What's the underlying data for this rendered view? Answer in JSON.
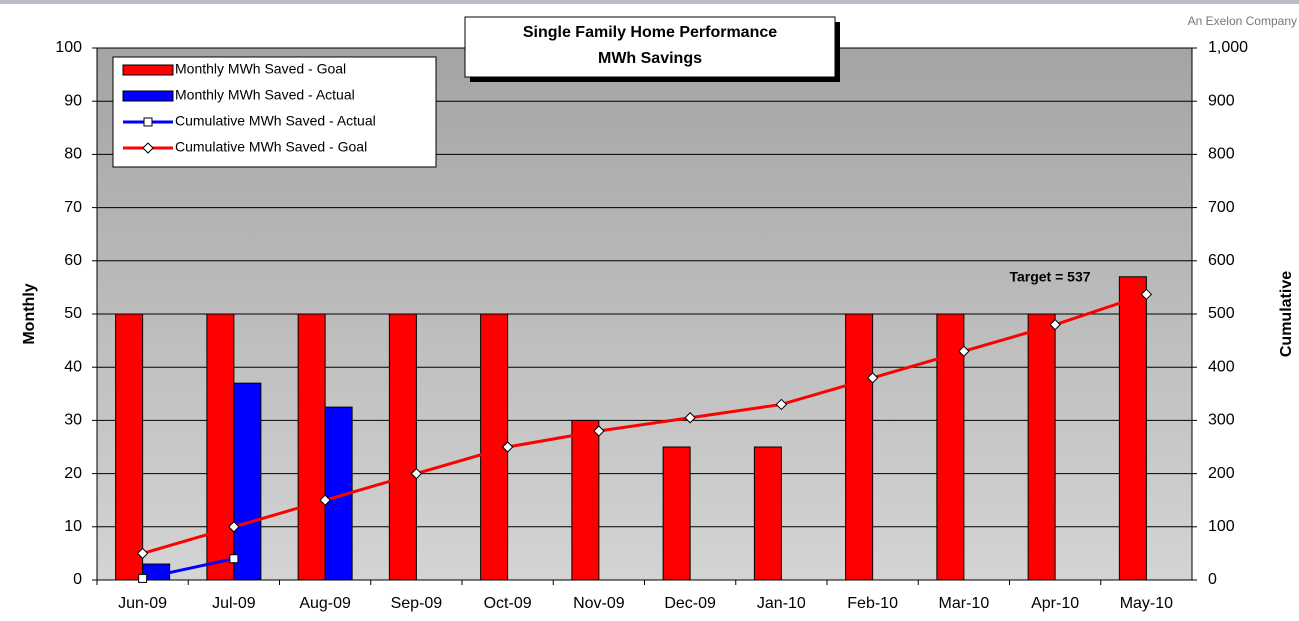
{
  "header": {
    "brand": "An Exelon Company"
  },
  "chart_data": {
    "type": "bar",
    "title": "Single Family Home Performance",
    "subtitle": "MWh Savings",
    "ylabel": "Monthly",
    "y2label": "Cumulative",
    "categories": [
      "Jun-09",
      "Jul-09",
      "Aug-09",
      "Sep-09",
      "Oct-09",
      "Nov-09",
      "Dec-09",
      "Jan-10",
      "Feb-10",
      "Mar-10",
      "Apr-10",
      "May-10"
    ],
    "series": [
      {
        "name": "Monthly MWh Saved - Goal",
        "type": "bar",
        "color": "#ff0000",
        "values": [
          50,
          50,
          50,
          50,
          50,
          30,
          25,
          25,
          50,
          50,
          50,
          57
        ]
      },
      {
        "name": "Monthly MWh Saved - Actual",
        "type": "bar",
        "color": "#0000ff",
        "values": [
          3,
          37,
          32.5,
          null,
          null,
          null,
          null,
          null,
          null,
          null,
          null,
          null
        ]
      },
      {
        "name": "Cumulative MWh Saved - Actual",
        "type": "line",
        "axis": "y2",
        "color": "#0000ff",
        "marker": "square",
        "values": [
          3,
          40,
          null,
          null,
          null,
          null,
          null,
          null,
          null,
          null,
          null,
          null
        ]
      },
      {
        "name": "Cumulative MWh Saved - Goal",
        "type": "line",
        "axis": "y2",
        "color": "#ff0000",
        "marker": "diamond",
        "values": [
          50,
          100,
          150,
          200,
          250,
          280,
          305,
          330,
          380,
          430,
          480,
          537
        ]
      }
    ],
    "ylim": [
      0,
      100
    ],
    "yticks": [
      0,
      10,
      20,
      30,
      40,
      50,
      60,
      70,
      80,
      90,
      100
    ],
    "y2lim": [
      0,
      1000
    ],
    "y2ticks": [
      0,
      100,
      200,
      300,
      400,
      500,
      600,
      700,
      800,
      900,
      {
        "value": 1000,
        "label": "1,000"
      }
    ],
    "grid": true,
    "legend": "top-left",
    "annotations": [
      {
        "text": "Target = 537"
      }
    ]
  }
}
